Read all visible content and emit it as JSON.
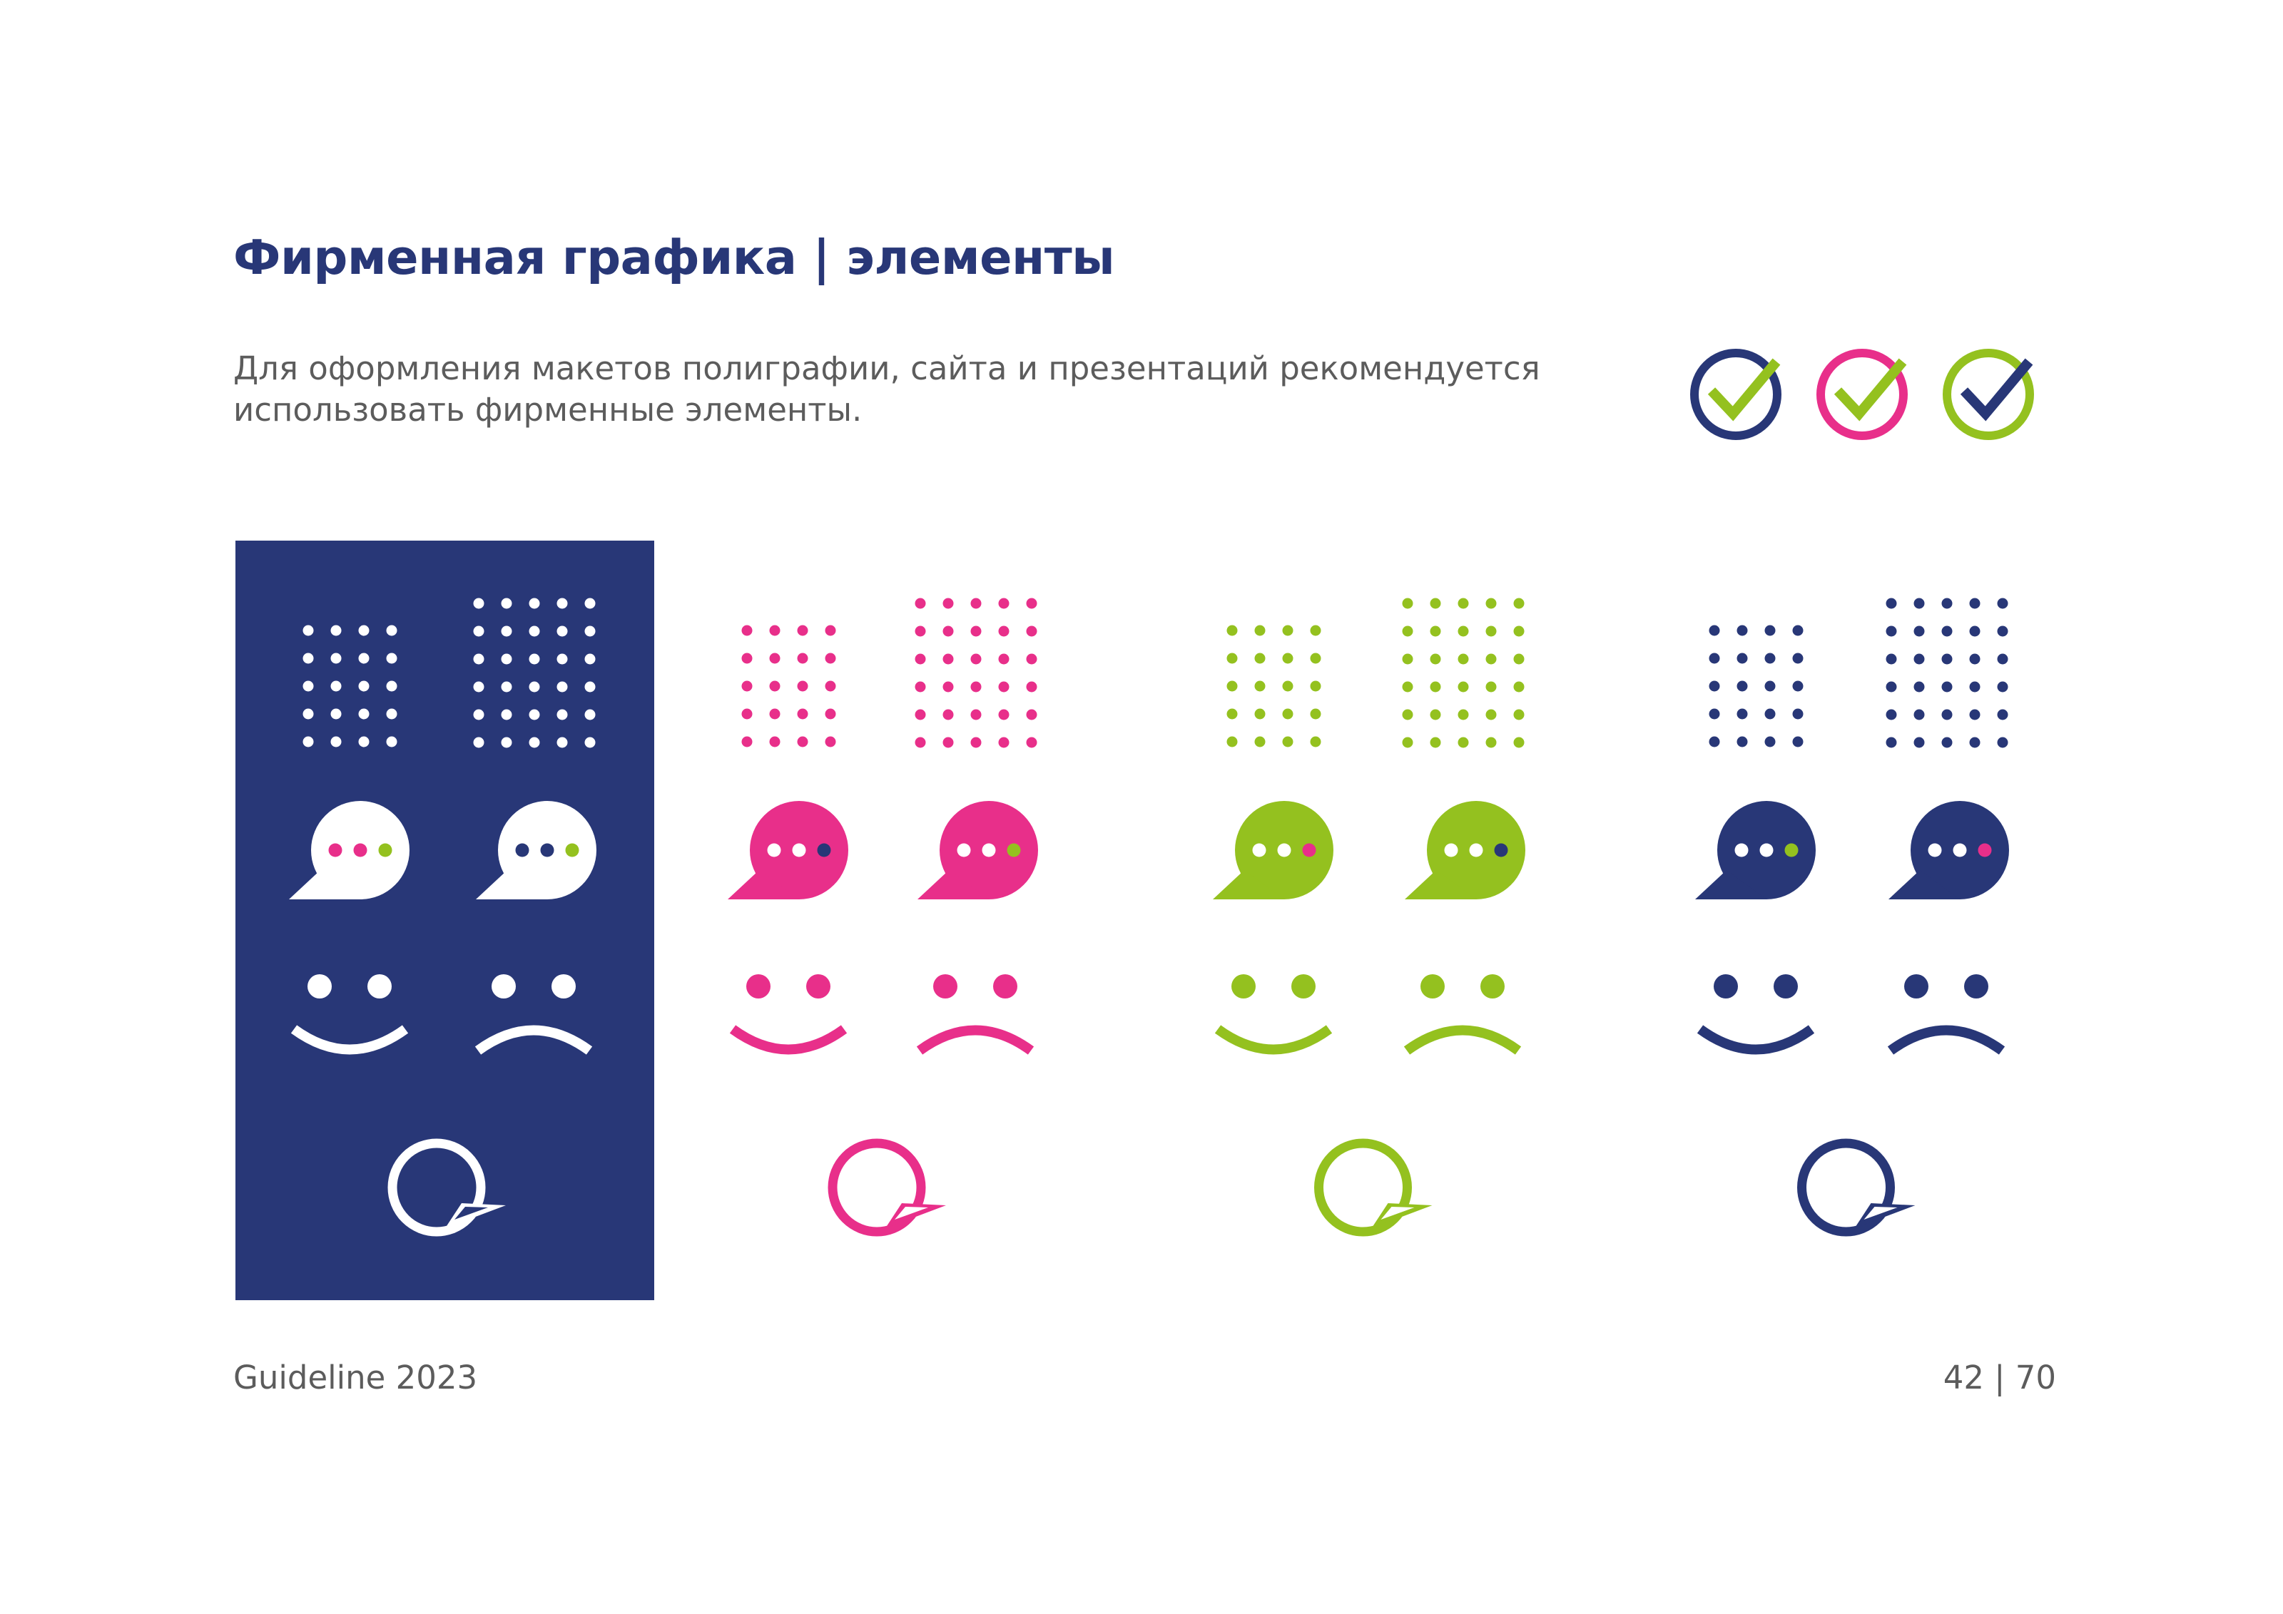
{
  "header": {
    "title": "Фирменная графика | элементы",
    "subtitle_line1": "Для оформления макетов полиграфии, сайта и презентаций рекомендуется",
    "subtitle_line2": "использовать фирменные элементы."
  },
  "footer": {
    "left": "Guideline 2023",
    "right": "42 | 70"
  },
  "colors": {
    "navy": "#283777",
    "pink": "#e82f8a",
    "green": "#94c11f",
    "white": "#ffffff"
  },
  "check_icons": [
    {
      "icon": "check-circle-icon",
      "ring": "navy",
      "check": "green"
    },
    {
      "icon": "check-circle-icon",
      "ring": "pink",
      "check": "green"
    },
    {
      "icon": "check-circle-icon",
      "ring": "green",
      "check": "navy"
    }
  ],
  "element_sets": [
    {
      "name": "white-on-navy",
      "main": "white",
      "background": "navy",
      "bubble1_dots": [
        "pink",
        "pink",
        "green"
      ],
      "bubble2_dots": [
        "navy",
        "navy",
        "green"
      ]
    },
    {
      "name": "pink",
      "main": "pink",
      "background": "none",
      "bubble1_dots": [
        "white",
        "white",
        "navy"
      ],
      "bubble2_dots": [
        "white",
        "white",
        "green"
      ]
    },
    {
      "name": "green",
      "main": "green",
      "background": "none",
      "bubble1_dots": [
        "white",
        "white",
        "pink"
      ],
      "bubble2_dots": [
        "white",
        "white",
        "navy"
      ]
    },
    {
      "name": "navy",
      "main": "navy",
      "background": "none",
      "bubble1_dots": [
        "white",
        "white",
        "green"
      ],
      "bubble2_dots": [
        "white",
        "white",
        "pink"
      ]
    }
  ],
  "icons": [
    "dot-grid-small-icon",
    "dot-grid-large-icon",
    "chat-bubble-icon",
    "happy-face-icon",
    "sad-face-icon",
    "speech-bubble-outline-icon"
  ]
}
